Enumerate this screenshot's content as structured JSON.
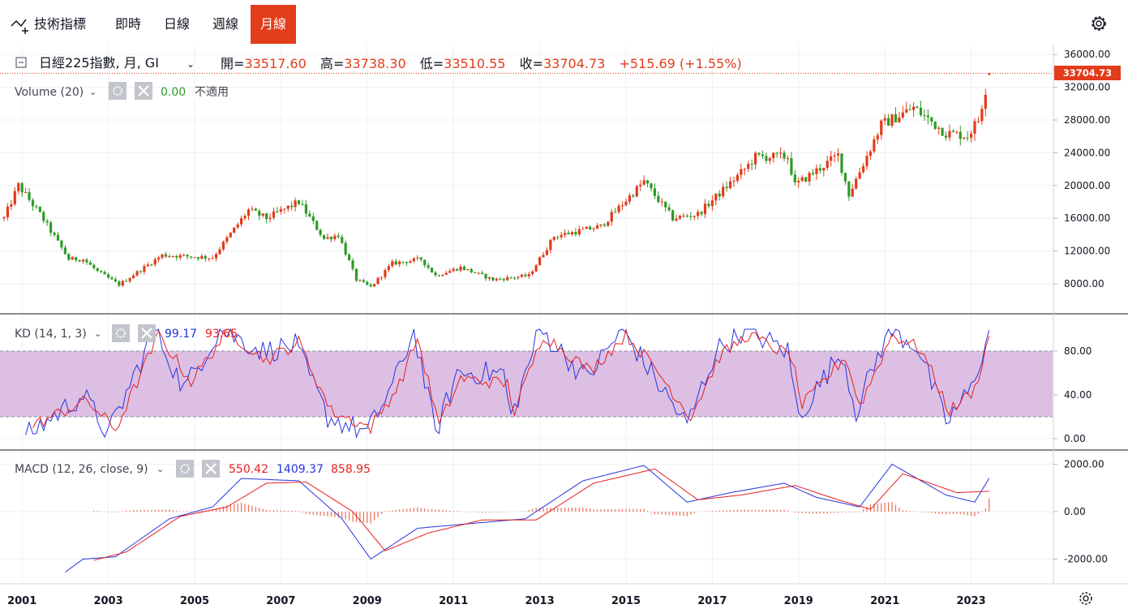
{
  "toolbar": {
    "indicators_label": "技術指標",
    "intervals": [
      {
        "label": "即時",
        "active": false
      },
      {
        "label": "日線",
        "active": false
      },
      {
        "label": "週線",
        "active": false
      },
      {
        "label": "月線",
        "active": true
      }
    ]
  },
  "legend": {
    "symbol": "日經225指數, 月, GI",
    "open_label": "開=",
    "open": "33517.60",
    "high_label": "高=",
    "high": "33738.30",
    "low_label": "低=",
    "low": "33510.55",
    "close_label": "收=",
    "close": "33704.73",
    "change": "+515.69 (+1.55%)"
  },
  "volume": {
    "label": "Volume (20)",
    "value": "0.00",
    "note": "不適用"
  },
  "kd": {
    "label": "KD (14, 1, 3)",
    "k": "99.17",
    "d": "93.65"
  },
  "macd": {
    "label": "MACD (12, 26, close, 9)",
    "hist": "550.42",
    "macd": "1409.37",
    "signal": "858.95"
  },
  "price_axis": {
    "ticks": [
      "36000.00",
      "32000.00",
      "28000.00",
      "24000.00",
      "20000.00",
      "16000.00",
      "12000.00",
      "8000.00"
    ],
    "last": "33704.73"
  },
  "kd_axis": {
    "ticks": [
      "80.00",
      "40.00",
      "0.00"
    ]
  },
  "macd_axis": {
    "ticks": [
      "2000.00",
      "0.00",
      "-2000.00"
    ]
  },
  "x_axis": {
    "ticks": [
      "2001",
      "2003",
      "2005",
      "2007",
      "2009",
      "2011",
      "2013",
      "2015",
      "2017",
      "2019",
      "2021",
      "2023"
    ]
  },
  "colors": {
    "up": "#e23c1a",
    "down": "#2e9b27",
    "accent": "#e23c1a",
    "k_line": "#2634e0",
    "d_line": "#e81f1f",
    "kd_band": "#dcbfe2"
  },
  "chart_data": [
    {
      "type": "candlestick",
      "title": "日經225指數, 月, GI",
      "ylim": [
        6000,
        37000
      ],
      "x_range": [
        "2000-08",
        "2023-06"
      ],
      "anchors": [
        {
          "x": "2000-08",
          "close": 16000
        },
        {
          "x": "2000-12",
          "close": 20000
        },
        {
          "x": "2001-06",
          "close": 16500
        },
        {
          "x": "2002-02",
          "close": 11000
        },
        {
          "x": "2002-06",
          "close": 11000
        },
        {
          "x": "2002-10",
          "close": 9500
        },
        {
          "x": "2003-04",
          "close": 7900
        },
        {
          "x": "2004-04",
          "close": 11500
        },
        {
          "x": "2005-06",
          "close": 11200
        },
        {
          "x": "2006-04",
          "close": 17000
        },
        {
          "x": "2006-09",
          "close": 16000
        },
        {
          "x": "2007-06",
          "close": 18000
        },
        {
          "x": "2008-01",
          "close": 13500
        },
        {
          "x": "2008-05",
          "close": 14000
        },
        {
          "x": "2008-10",
          "close": 8500
        },
        {
          "x": "2009-02",
          "close": 7600
        },
        {
          "x": "2009-08",
          "close": 10500
        },
        {
          "x": "2010-04",
          "close": 11000
        },
        {
          "x": "2010-08",
          "close": 9000
        },
        {
          "x": "2011-03",
          "close": 10000
        },
        {
          "x": "2011-12",
          "close": 8500
        },
        {
          "x": "2012-10",
          "close": 9000
        },
        {
          "x": "2013-05",
          "close": 13800
        },
        {
          "x": "2014-06",
          "close": 15000
        },
        {
          "x": "2015-06",
          "close": 20500
        },
        {
          "x": "2016-02",
          "close": 16000
        },
        {
          "x": "2016-09",
          "close": 16500
        },
        {
          "x": "2017-10",
          "close": 22000
        },
        {
          "x": "2018-01",
          "close": 23500
        },
        {
          "x": "2018-10",
          "close": 23500
        },
        {
          "x": "2018-12",
          "close": 20000
        },
        {
          "x": "2019-12",
          "close": 23700
        },
        {
          "x": "2020-03",
          "close": 18900
        },
        {
          "x": "2020-12",
          "close": 27400
        },
        {
          "x": "2021-09",
          "close": 29500
        },
        {
          "x": "2022-06",
          "close": 26400
        },
        {
          "x": "2022-12",
          "close": 26100
        },
        {
          "x": "2023-03",
          "close": 28000
        },
        {
          "x": "2023-06",
          "close": 33704.73
        }
      ]
    },
    {
      "type": "line",
      "title": "KD (14, 1, 3)",
      "ylim": [
        -5,
        105
      ],
      "x_range": [
        "2000-08",
        "2023-06"
      ],
      "band": [
        20,
        80
      ],
      "series": [
        {
          "name": "K",
          "color": "#2634e0",
          "points": [
            {
              "x": "2001-02",
              "y": 2
            },
            {
              "x": "2002-06",
              "y": 40
            },
            {
              "x": "2003-01",
              "y": 4
            },
            {
              "x": "2004-02",
              "y": 100
            },
            {
              "x": "2004-10",
              "y": 45
            },
            {
              "x": "2005-08",
              "y": 100
            },
            {
              "x": "2006-08",
              "y": 80
            },
            {
              "x": "2007-05",
              "y": 85
            },
            {
              "x": "2008-02",
              "y": 20
            },
            {
              "x": "2009-01",
              "y": 5
            },
            {
              "x": "2009-09",
              "y": 55
            },
            {
              "x": "2010-02",
              "y": 100
            },
            {
              "x": "2010-08",
              "y": 5
            },
            {
              "x": "2011-02",
              "y": 60
            },
            {
              "x": "2012-03",
              "y": 60
            },
            {
              "x": "2012-05",
              "y": 18
            },
            {
              "x": "2013-01",
              "y": 100
            },
            {
              "x": "2014-02",
              "y": 55
            },
            {
              "x": "2014-12",
              "y": 100
            },
            {
              "x": "2015-08",
              "y": 60
            },
            {
              "x": "2016-06",
              "y": 12
            },
            {
              "x": "2017-02",
              "y": 80
            },
            {
              "x": "2017-10",
              "y": 100
            },
            {
              "x": "2018-10",
              "y": 80
            },
            {
              "x": "2019-01",
              "y": 20
            },
            {
              "x": "2020-01",
              "y": 80
            },
            {
              "x": "2020-05",
              "y": 25
            },
            {
              "x": "2021-02",
              "y": 100
            },
            {
              "x": "2021-10",
              "y": 85
            },
            {
              "x": "2022-06",
              "y": 15
            },
            {
              "x": "2023-01",
              "y": 45
            },
            {
              "x": "2023-06",
              "y": 99.17
            }
          ]
        },
        {
          "name": "D",
          "color": "#e81f1f",
          "points": [
            {
              "x": "2001-04",
              "y": 12
            },
            {
              "x": "2002-07",
              "y": 35
            },
            {
              "x": "2003-03",
              "y": 8
            },
            {
              "x": "2004-03",
              "y": 95
            },
            {
              "x": "2004-12",
              "y": 52
            },
            {
              "x": "2005-10",
              "y": 98
            },
            {
              "x": "2006-09",
              "y": 72
            },
            {
              "x": "2007-06",
              "y": 88
            },
            {
              "x": "2008-03",
              "y": 25
            },
            {
              "x": "2009-02",
              "y": 10
            },
            {
              "x": "2009-10",
              "y": 50
            },
            {
              "x": "2010-03",
              "y": 92
            },
            {
              "x": "2010-09",
              "y": 12
            },
            {
              "x": "2011-03",
              "y": 55
            },
            {
              "x": "2012-04",
              "y": 50
            },
            {
              "x": "2012-06",
              "y": 25
            },
            {
              "x": "2013-02",
              "y": 95
            },
            {
              "x": "2014-03",
              "y": 62
            },
            {
              "x": "2015-01",
              "y": 95
            },
            {
              "x": "2015-09",
              "y": 65
            },
            {
              "x": "2016-07",
              "y": 20
            },
            {
              "x": "2017-03",
              "y": 75
            },
            {
              "x": "2017-11",
              "y": 95
            },
            {
              "x": "2018-11",
              "y": 75
            },
            {
              "x": "2019-02",
              "y": 30
            },
            {
              "x": "2020-02",
              "y": 75
            },
            {
              "x": "2020-06",
              "y": 30
            },
            {
              "x": "2021-03",
              "y": 95
            },
            {
              "x": "2021-11",
              "y": 82
            },
            {
              "x": "2022-07",
              "y": 25
            },
            {
              "x": "2023-02",
              "y": 45
            },
            {
              "x": "2023-06",
              "y": 93.65
            }
          ]
        }
      ]
    },
    {
      "type": "line",
      "title": "MACD (12, 26, close, 9)",
      "ylim": [
        -2700,
        2200
      ],
      "x_range": [
        "2000-08",
        "2023-06"
      ],
      "series": [
        {
          "name": "MACD",
          "color": "#2634e0",
          "points": [
            {
              "x": "2002-01",
              "y": -2550
            },
            {
              "x": "2002-06",
              "y": -2000
            },
            {
              "x": "2003-03",
              "y": -1900
            },
            {
              "x": "2004-06",
              "y": -300
            },
            {
              "x": "2005-06",
              "y": 200
            },
            {
              "x": "2006-02",
              "y": 1400
            },
            {
              "x": "2007-06",
              "y": 1300
            },
            {
              "x": "2008-06",
              "y": -300
            },
            {
              "x": "2009-02",
              "y": -2000
            },
            {
              "x": "2010-03",
              "y": -700
            },
            {
              "x": "2011-06",
              "y": -500
            },
            {
              "x": "2012-09",
              "y": -300
            },
            {
              "x": "2014-01",
              "y": 1300
            },
            {
              "x": "2015-06",
              "y": 1950
            },
            {
              "x": "2016-06",
              "y": 400
            },
            {
              "x": "2017-06",
              "y": 800
            },
            {
              "x": "2018-09",
              "y": 1200
            },
            {
              "x": "2019-06",
              "y": 600
            },
            {
              "x": "2020-06",
              "y": 200
            },
            {
              "x": "2021-03",
              "y": 2000
            },
            {
              "x": "2022-06",
              "y": 700
            },
            {
              "x": "2023-02",
              "y": 400
            },
            {
              "x": "2023-06",
              "y": 1409.37
            }
          ]
        },
        {
          "name": "Signal",
          "color": "#e81f1f",
          "points": [
            {
              "x": "2002-09",
              "y": -2050
            },
            {
              "x": "2003-06",
              "y": -1700
            },
            {
              "x": "2004-09",
              "y": -200
            },
            {
              "x": "2005-10",
              "y": 200
            },
            {
              "x": "2006-09",
              "y": 1200
            },
            {
              "x": "2007-08",
              "y": 1250
            },
            {
              "x": "2008-09",
              "y": 0
            },
            {
              "x": "2009-06",
              "y": -1650
            },
            {
              "x": "2010-06",
              "y": -900
            },
            {
              "x": "2011-09",
              "y": -350
            },
            {
              "x": "2012-12",
              "y": -350
            },
            {
              "x": "2014-04",
              "y": 1200
            },
            {
              "x": "2015-09",
              "y": 1800
            },
            {
              "x": "2016-09",
              "y": 500
            },
            {
              "x": "2017-09",
              "y": 700
            },
            {
              "x": "2018-12",
              "y": 1100
            },
            {
              "x": "2019-12",
              "y": 500
            },
            {
              "x": "2020-09",
              "y": 100
            },
            {
              "x": "2021-06",
              "y": 1600
            },
            {
              "x": "2022-09",
              "y": 800
            },
            {
              "x": "2023-06",
              "y": 858.95
            }
          ]
        }
      ],
      "histogram_color": "#e23c1a",
      "histogram_last": 550.42
    }
  ]
}
